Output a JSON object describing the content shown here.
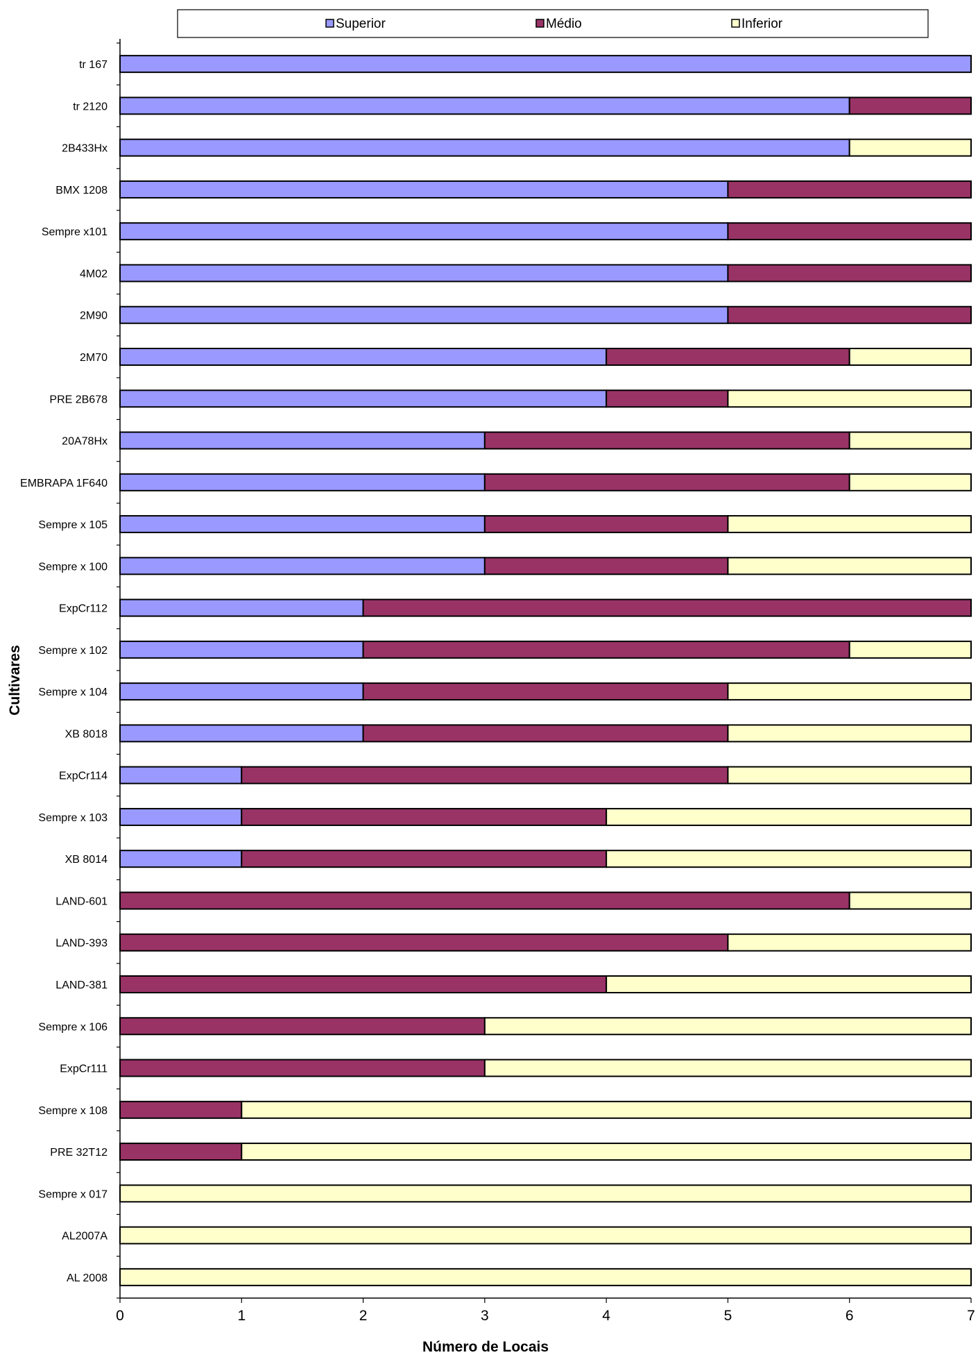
{
  "chart_data": {
    "type": "bar",
    "orientation": "horizontal",
    "stacked": true,
    "xlabel": "Número de Locais",
    "ylabel": "Cultivares",
    "xlim": [
      0,
      7
    ],
    "xticks": [
      "0",
      "1",
      "2",
      "3",
      "4",
      "5",
      "6",
      "7"
    ],
    "legend_position": "top",
    "categories": [
      "tr 167",
      "tr 2120",
      "2B433Hx",
      "BMX 1208",
      "Sempre x101",
      "4M02",
      "2M90",
      "2M70",
      "PRE 2B678",
      "20A78Hx",
      "EMBRAPA 1F640",
      "Sempre x 105",
      "Sempre x 100",
      "ExpCr112",
      "Sempre x 102",
      "Sempre x 104",
      "XB 8018",
      "ExpCr114",
      "Sempre x 103",
      "XB 8014",
      "LAND-601",
      "LAND-393",
      "LAND-381",
      "Sempre x 106",
      "ExpCr111",
      "Sempre x 108",
      "PRE 32T12",
      "Sempre x 017",
      "AL2007A",
      "AL 2008"
    ],
    "series": [
      {
        "name": "Superior",
        "color": "#9999ff",
        "values": [
          7,
          6,
          6,
          5,
          5,
          5,
          5,
          4,
          4,
          3,
          3,
          3,
          3,
          2,
          2,
          2,
          2,
          1,
          1,
          1,
          0,
          0,
          0,
          0,
          0,
          0,
          0,
          0,
          0,
          0
        ]
      },
      {
        "name": "Médio",
        "color": "#993366",
        "values": [
          0,
          1,
          0,
          2,
          2,
          2,
          2,
          2,
          1,
          3,
          3,
          2,
          2,
          5,
          4,
          3,
          3,
          4,
          3,
          3,
          6,
          5,
          4,
          3,
          3,
          1,
          1,
          0,
          0,
          0
        ]
      },
      {
        "name": "Inferior",
        "color": "#ffffcc",
        "values": [
          0,
          0,
          1,
          0,
          0,
          0,
          0,
          1,
          2,
          1,
          1,
          2,
          2,
          0,
          1,
          2,
          2,
          2,
          3,
          3,
          1,
          2,
          3,
          4,
          4,
          6,
          6,
          7,
          7,
          7
        ]
      }
    ]
  }
}
